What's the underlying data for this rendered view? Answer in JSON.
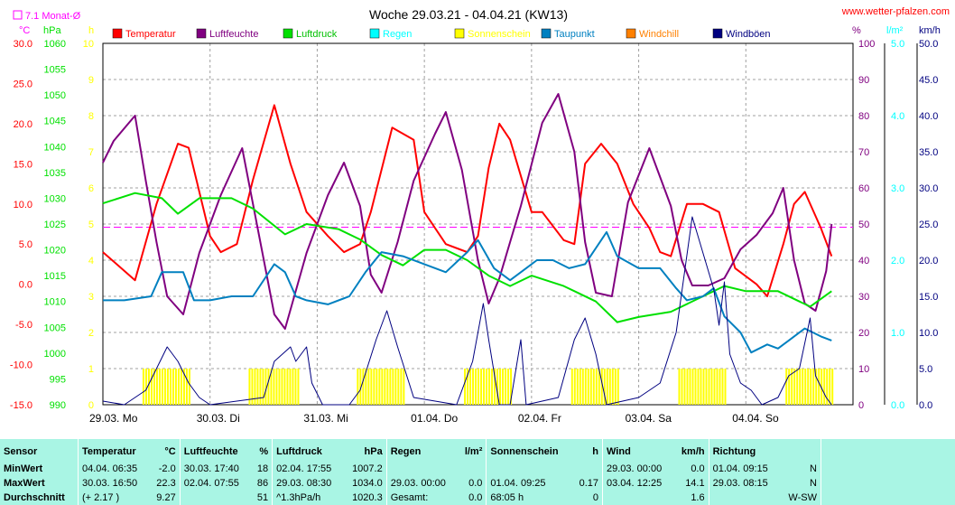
{
  "site": "www.wetter-pfalzen.com",
  "title": "Woche 29.03.21 - 04.04.21 (KW13)",
  "monthly_avg_label": "7.1 Monat-Ø",
  "axis_units": {
    "left1": "°C",
    "left2": "hPa",
    "left3": "h",
    "right1": "%",
    "right2": "l/m²",
    "right3": "km/h"
  },
  "legend": [
    {
      "name": "Temperatur",
      "color": "#ff0000"
    },
    {
      "name": "Luftfeuchte",
      "color": "#800080"
    },
    {
      "name": "Luftdruck",
      "color": "#00e000"
    },
    {
      "name": "Regen",
      "color": "#00ffff"
    },
    {
      "name": "Sonnenschein",
      "color": "#ffff00"
    },
    {
      "name": "Taupunkt",
      "color": "#0080c0"
    },
    {
      "name": "Windchill",
      "color": "#ff8000"
    },
    {
      "name": "Windböen",
      "color": "#000080"
    }
  ],
  "chart_data": {
    "type": "line",
    "x_labels": [
      "29.03. Mo",
      "30.03. Di",
      "31.03. Mi",
      "01.04. Do",
      "02.04. Fr",
      "03.04. Sa",
      "04.04. So"
    ],
    "x_unit": "days",
    "axes": {
      "temperature": {
        "min": -15,
        "max": 30,
        "ticks": [
          "30.0",
          "25.0",
          "20.0",
          "15.0",
          "10.0",
          "5.0",
          "0.0",
          "-5.0",
          "-10.0",
          "-15.0"
        ]
      },
      "pressure": {
        "min": 990,
        "max": 1060,
        "ticks": [
          "1060",
          "1055",
          "1050",
          "1045",
          "1040",
          "1035",
          "1030",
          "1025",
          "1020",
          "1015",
          "1010",
          "1005",
          "1000",
          "995",
          "990"
        ]
      },
      "sunshine_h": {
        "min": 0,
        "max": 10,
        "ticks": [
          "10",
          "9",
          "8",
          "7",
          "6",
          "5",
          "4",
          "3",
          "2",
          "1",
          "0"
        ]
      },
      "humidity": {
        "min": 0,
        "max": 100,
        "ticks": [
          "100",
          "90",
          "80",
          "70",
          "60",
          "50",
          "40",
          "30",
          "20",
          "10",
          "0"
        ]
      },
      "rain": {
        "min": 0,
        "max": 5,
        "ticks": [
          "5.0",
          "4.0",
          "3.0",
          "2.0",
          "1.0",
          "0.0"
        ]
      },
      "wind": {
        "min": 0,
        "max": 50,
        "ticks": [
          "50.0",
          "45.0",
          "40.0",
          "35.0",
          "30.0",
          "25.0",
          "20.0",
          "15.0",
          "10.0",
          "5.0",
          "0.0"
        ]
      }
    },
    "monthly_avg_temperature": 7.1,
    "series": [
      {
        "name": "Temperatur",
        "axis": "temperature",
        "color": "#ff0000",
        "points": [
          [
            0,
            4
          ],
          [
            0.3,
            0.5
          ],
          [
            0.5,
            10
          ],
          [
            0.7,
            17.5
          ],
          [
            0.8,
            17
          ],
          [
            1.0,
            6
          ],
          [
            1.1,
            4
          ],
          [
            1.25,
            5
          ],
          [
            1.4,
            13
          ],
          [
            1.6,
            22.3
          ],
          [
            1.75,
            15
          ],
          [
            1.9,
            9
          ],
          [
            2.1,
            6
          ],
          [
            2.25,
            4
          ],
          [
            2.4,
            5
          ],
          [
            2.5,
            9
          ],
          [
            2.7,
            19.5
          ],
          [
            2.9,
            18
          ],
          [
            3.0,
            9
          ],
          [
            3.2,
            5
          ],
          [
            3.4,
            4
          ],
          [
            3.5,
            6
          ],
          [
            3.6,
            14.5
          ],
          [
            3.7,
            20
          ],
          [
            3.8,
            18
          ],
          [
            4.0,
            9
          ],
          [
            4.1,
            9
          ],
          [
            4.3,
            5.5
          ],
          [
            4.4,
            5
          ],
          [
            4.5,
            15
          ],
          [
            4.65,
            17.5
          ],
          [
            4.8,
            15
          ],
          [
            4.95,
            10
          ],
          [
            5.1,
            7
          ],
          [
            5.2,
            4
          ],
          [
            5.3,
            3.5
          ],
          [
            5.45,
            10
          ],
          [
            5.6,
            10
          ],
          [
            5.75,
            9
          ],
          [
            5.9,
            2
          ],
          [
            6.1,
            0
          ],
          [
            6.2,
            -1.5
          ],
          [
            6.35,
            5
          ],
          [
            6.45,
            10
          ],
          [
            6.55,
            11.5
          ],
          [
            6.7,
            7
          ],
          [
            6.8,
            3.5
          ]
        ]
      },
      {
        "name": "Luftfeuchte",
        "axis": "humidity",
        "color": "#800080",
        "points": [
          [
            0,
            67
          ],
          [
            0.1,
            73
          ],
          [
            0.3,
            80
          ],
          [
            0.4,
            62
          ],
          [
            0.5,
            45
          ],
          [
            0.6,
            30
          ],
          [
            0.75,
            25
          ],
          [
            0.9,
            42
          ],
          [
            1.1,
            58
          ],
          [
            1.3,
            71
          ],
          [
            1.45,
            48
          ],
          [
            1.6,
            25
          ],
          [
            1.7,
            21
          ],
          [
            1.9,
            42
          ],
          [
            2.1,
            58
          ],
          [
            2.25,
            67
          ],
          [
            2.4,
            55
          ],
          [
            2.5,
            36
          ],
          [
            2.6,
            31
          ],
          [
            2.75,
            45
          ],
          [
            2.9,
            62
          ],
          [
            3.1,
            75
          ],
          [
            3.2,
            81
          ],
          [
            3.35,
            65
          ],
          [
            3.5,
            40
          ],
          [
            3.6,
            28
          ],
          [
            3.7,
            35
          ],
          [
            3.9,
            55
          ],
          [
            4.1,
            78
          ],
          [
            4.25,
            86
          ],
          [
            4.4,
            70
          ],
          [
            4.5,
            45
          ],
          [
            4.6,
            31
          ],
          [
            4.75,
            30
          ],
          [
            4.9,
            56
          ],
          [
            5.1,
            71
          ],
          [
            5.3,
            55
          ],
          [
            5.4,
            40
          ],
          [
            5.5,
            33
          ],
          [
            5.65,
            33
          ],
          [
            5.8,
            35
          ],
          [
            5.95,
            43
          ],
          [
            6.1,
            47
          ],
          [
            6.25,
            53
          ],
          [
            6.35,
            60
          ],
          [
            6.45,
            40
          ],
          [
            6.55,
            28
          ],
          [
            6.65,
            26
          ],
          [
            6.75,
            37
          ],
          [
            6.8,
            50
          ]
        ]
      },
      {
        "name": "Luftdruck",
        "axis": "pressure",
        "color": "#00e000",
        "points": [
          [
            0,
            1029
          ],
          [
            0.3,
            1031
          ],
          [
            0.55,
            1030
          ],
          [
            0.7,
            1027
          ],
          [
            0.9,
            1030
          ],
          [
            1.2,
            1030
          ],
          [
            1.4,
            1028
          ],
          [
            1.7,
            1023
          ],
          [
            1.9,
            1025
          ],
          [
            2.2,
            1024
          ],
          [
            2.4,
            1022
          ],
          [
            2.6,
            1019
          ],
          [
            2.8,
            1017
          ],
          [
            3.0,
            1020
          ],
          [
            3.2,
            1020
          ],
          [
            3.4,
            1018
          ],
          [
            3.6,
            1015
          ],
          [
            3.8,
            1013
          ],
          [
            4.0,
            1015
          ],
          [
            4.3,
            1013
          ],
          [
            4.6,
            1010
          ],
          [
            4.8,
            1006
          ],
          [
            5.0,
            1007
          ],
          [
            5.3,
            1008
          ],
          [
            5.6,
            1011
          ],
          [
            5.8,
            1013
          ],
          [
            6.0,
            1012
          ],
          [
            6.3,
            1012
          ],
          [
            6.5,
            1010
          ],
          [
            6.6,
            1009
          ],
          [
            6.8,
            1012
          ]
        ]
      },
      {
        "name": "Taupunkt",
        "axis": "temperature",
        "color": "#0080c0",
        "points": [
          [
            0,
            -2
          ],
          [
            0.2,
            -2
          ],
          [
            0.45,
            -1.5
          ],
          [
            0.55,
            1.5
          ],
          [
            0.75,
            1.5
          ],
          [
            0.85,
            -2
          ],
          [
            1.0,
            -2
          ],
          [
            1.2,
            -1.5
          ],
          [
            1.4,
            -1.5
          ],
          [
            1.6,
            2.5
          ],
          [
            1.7,
            1.5
          ],
          [
            1.8,
            -1.5
          ],
          [
            1.9,
            -2
          ],
          [
            2.1,
            -2.5
          ],
          [
            2.3,
            -1.5
          ],
          [
            2.45,
            1.5
          ],
          [
            2.6,
            4
          ],
          [
            2.8,
            3.5
          ],
          [
            3.0,
            2.5
          ],
          [
            3.2,
            1.5
          ],
          [
            3.4,
            4
          ],
          [
            3.5,
            5.5
          ],
          [
            3.65,
            2
          ],
          [
            3.8,
            0.5
          ],
          [
            3.95,
            2
          ],
          [
            4.05,
            3
          ],
          [
            4.2,
            3
          ],
          [
            4.35,
            2
          ],
          [
            4.5,
            2.5
          ],
          [
            4.6,
            4.5
          ],
          [
            4.7,
            6.5
          ],
          [
            4.8,
            3.5
          ],
          [
            5.0,
            2
          ],
          [
            5.2,
            2
          ],
          [
            5.35,
            -0.5
          ],
          [
            5.45,
            -2
          ],
          [
            5.6,
            -1.5
          ],
          [
            5.7,
            -0.5
          ],
          [
            5.8,
            -4
          ],
          [
            5.95,
            -6
          ],
          [
            6.05,
            -8.5
          ],
          [
            6.2,
            -7.5
          ],
          [
            6.3,
            -8
          ],
          [
            6.4,
            -7
          ],
          [
            6.55,
            -5.5
          ],
          [
            6.7,
            -6.5
          ],
          [
            6.8,
            -7
          ]
        ]
      },
      {
        "name": "Windböen",
        "axis": "wind",
        "color": "#000080",
        "points": [
          [
            0,
            0.5
          ],
          [
            0.2,
            0
          ],
          [
            0.4,
            2
          ],
          [
            0.5,
            5
          ],
          [
            0.6,
            8
          ],
          [
            0.7,
            6
          ],
          [
            0.8,
            3
          ],
          [
            0.9,
            1
          ],
          [
            1.0,
            0
          ],
          [
            1.5,
            1
          ],
          [
            1.6,
            6
          ],
          [
            1.75,
            8
          ],
          [
            1.8,
            6
          ],
          [
            1.9,
            8
          ],
          [
            1.95,
            3
          ],
          [
            2.05,
            0
          ],
          [
            2.3,
            0
          ],
          [
            2.4,
            2
          ],
          [
            2.55,
            9
          ],
          [
            2.65,
            13
          ],
          [
            2.75,
            8
          ],
          [
            2.9,
            1
          ],
          [
            3.3,
            0
          ],
          [
            3.45,
            6
          ],
          [
            3.55,
            14
          ],
          [
            3.6,
            9
          ],
          [
            3.7,
            0
          ],
          [
            3.8,
            0
          ],
          [
            3.9,
            9
          ],
          [
            3.95,
            0
          ],
          [
            4.25,
            1
          ],
          [
            4.4,
            9
          ],
          [
            4.5,
            12
          ],
          [
            4.6,
            7
          ],
          [
            4.7,
            0
          ],
          [
            5.0,
            1
          ],
          [
            5.2,
            3
          ],
          [
            5.35,
            10
          ],
          [
            5.5,
            26
          ],
          [
            5.6,
            21
          ],
          [
            5.7,
            16
          ],
          [
            5.75,
            11
          ],
          [
            5.8,
            17
          ],
          [
            5.85,
            7
          ],
          [
            5.95,
            3
          ],
          [
            6.05,
            2
          ],
          [
            6.15,
            0
          ],
          [
            6.3,
            1
          ],
          [
            6.4,
            4
          ],
          [
            6.5,
            5
          ],
          [
            6.6,
            12
          ],
          [
            6.65,
            4
          ],
          [
            6.75,
            1
          ],
          [
            6.8,
            0
          ]
        ]
      }
    ],
    "sunshine_bars": [
      {
        "start": 0.37,
        "end": 0.82,
        "value": 1
      },
      {
        "start": 1.36,
        "end": 1.82,
        "value": 1
      },
      {
        "start": 2.37,
        "end": 2.82,
        "value": 1
      },
      {
        "start": 3.37,
        "end": 3.82,
        "value": 1
      },
      {
        "start": 4.37,
        "end": 4.82,
        "value": 1
      },
      {
        "start": 5.37,
        "end": 5.82,
        "value": 1
      },
      {
        "start": 6.37,
        "end": 6.82,
        "value": 1
      }
    ]
  },
  "stats": {
    "headers": [
      {
        "label": "Sensor",
        "unit": ""
      },
      {
        "label": "Temperatur",
        "unit": "°C"
      },
      {
        "label": "Luftfeuchte",
        "unit": "%"
      },
      {
        "label": "Luftdruck",
        "unit": "hPa"
      },
      {
        "label": "Regen",
        "unit": "l/m²"
      },
      {
        "label": "Sonnenschein",
        "unit": "h"
      },
      {
        "label": "Wind",
        "unit": "km/h"
      },
      {
        "label": "Richtung",
        "unit": ""
      }
    ],
    "rows": [
      {
        "label": "MinWert",
        "cells": [
          [
            "04.04.  06:35",
            "-2.0"
          ],
          [
            "30.03.  17:40",
            "18"
          ],
          [
            "02.04.  17:55",
            "1007.2"
          ],
          [
            "",
            ""
          ],
          [
            "",
            ""
          ],
          [
            "29.03.  00:00",
            "0.0"
          ],
          [
            "01.04.  09:15",
            "N"
          ]
        ]
      },
      {
        "label": "MaxWert",
        "cells": [
          [
            "30.03.  16:50",
            "22.3"
          ],
          [
            "02.04.  07:55",
            "86"
          ],
          [
            "29.03.  08:30",
            "1034.0"
          ],
          [
            "29.03.  00:00",
            "0.0"
          ],
          [
            "01.04.  09:25",
            "0.17"
          ],
          [
            "03.04.  12:25",
            "14.1"
          ],
          [
            "29.03.  08:15",
            "N"
          ]
        ]
      },
      {
        "label": "Durchschnitt",
        "cells": [
          [
            "(+ 2.17 )",
            "9.27"
          ],
          [
            "",
            "51"
          ],
          [
            "^1.3hPa/h",
            "1020.3"
          ],
          [
            "Gesamt:",
            "0.0"
          ],
          [
            "68:05 h",
            "0"
          ],
          [
            "",
            "1.6"
          ],
          [
            "",
            "W-SW"
          ]
        ]
      }
    ]
  }
}
